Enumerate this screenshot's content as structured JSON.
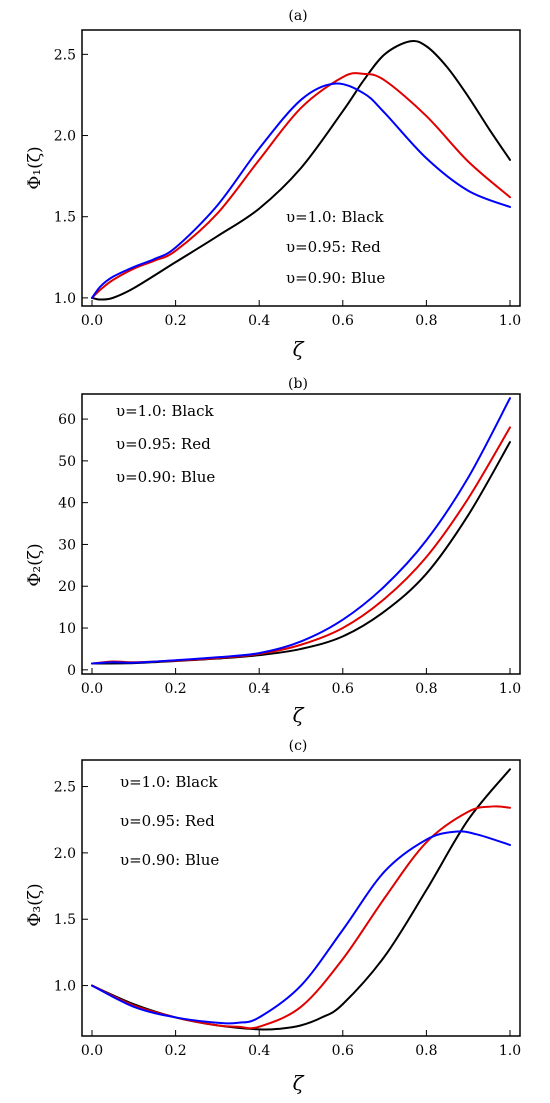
{
  "chart_data": [
    {
      "type": "line",
      "title": "(a)",
      "xlabel": "ζ",
      "ylabel": "Φ₁(ζ)",
      "xlim": [
        0,
        1
      ],
      "ylim": [
        0.95,
        2.65
      ],
      "xticks": [
        0.0,
        0.2,
        0.4,
        0.6,
        0.8,
        1.0
      ],
      "xtick_labels": [
        "0.0",
        "0.2",
        "0.4",
        "0.6",
        "0.8",
        "1.0"
      ],
      "yticks": [
        1.0,
        1.5,
        2.0,
        2.5
      ],
      "ytick_labels": [
        "1.0",
        "1.5",
        "2.0",
        "2.5"
      ],
      "annotations": [
        "υ=1.0: Black",
        "υ=0.95: Red",
        "υ=0.90: Blue"
      ],
      "annotation_position": "lower-right",
      "grid": false,
      "series": [
        {
          "color": "#000000",
          "x": [
            0,
            0.02,
            0.05,
            0.1,
            0.2,
            0.3,
            0.4,
            0.5,
            0.6,
            0.65,
            0.7,
            0.76,
            0.8,
            0.85,
            0.9,
            0.95,
            1.0
          ],
          "y": [
            1.0,
            0.99,
            1.0,
            1.06,
            1.22,
            1.38,
            1.55,
            1.8,
            2.15,
            2.34,
            2.5,
            2.58,
            2.55,
            2.42,
            2.24,
            2.04,
            1.85
          ]
        },
        {
          "color": "#e00000",
          "x": [
            0,
            0.02,
            0.05,
            0.1,
            0.15,
            0.2,
            0.3,
            0.4,
            0.5,
            0.6,
            0.65,
            0.7,
            0.8,
            0.9,
            1.0
          ],
          "y": [
            1.0,
            1.05,
            1.11,
            1.18,
            1.23,
            1.29,
            1.52,
            1.85,
            2.17,
            2.36,
            2.38,
            2.34,
            2.12,
            1.84,
            1.62
          ]
        },
        {
          "color": "#0000ff",
          "x": [
            0,
            0.02,
            0.05,
            0.1,
            0.15,
            0.2,
            0.3,
            0.4,
            0.5,
            0.58,
            0.65,
            0.7,
            0.8,
            0.9,
            1.0
          ],
          "y": [
            1.0,
            1.07,
            1.13,
            1.19,
            1.24,
            1.31,
            1.57,
            1.92,
            2.22,
            2.32,
            2.26,
            2.14,
            1.86,
            1.66,
            1.56
          ]
        }
      ]
    },
    {
      "type": "line",
      "title": "(b)",
      "xlabel": "ζ",
      "ylabel": "Φ₂(ζ)",
      "xlim": [
        0,
        1
      ],
      "ylim": [
        -1,
        66
      ],
      "xticks": [
        0.0,
        0.2,
        0.4,
        0.6,
        0.8,
        1.0
      ],
      "xtick_labels": [
        "0.0",
        "0.2",
        "0.4",
        "0.6",
        "0.8",
        "1.0"
      ],
      "yticks": [
        0,
        10,
        20,
        30,
        40,
        50,
        60
      ],
      "ytick_labels": [
        "0",
        "10",
        "20",
        "30",
        "40",
        "50",
        "60"
      ],
      "annotations": [
        "υ=1.0: Black",
        "υ=0.95: Red",
        "υ=0.90: Blue"
      ],
      "annotation_position": "top-left",
      "grid": false,
      "series": [
        {
          "color": "#000000",
          "x": [
            0,
            0.1,
            0.2,
            0.3,
            0.4,
            0.5,
            0.6,
            0.7,
            0.8,
            0.9,
            1.0
          ],
          "y": [
            1.5,
            1.6,
            2.1,
            2.7,
            3.5,
            5.0,
            8.0,
            14.0,
            23.0,
            37.0,
            54.5
          ]
        },
        {
          "color": "#e00000",
          "x": [
            0,
            0.05,
            0.1,
            0.2,
            0.3,
            0.4,
            0.5,
            0.6,
            0.7,
            0.8,
            0.9,
            1.0
          ],
          "y": [
            1.5,
            2.0,
            1.8,
            2.2,
            2.8,
            3.8,
            6.0,
            10.0,
            17.0,
            27.0,
            41.0,
            58.0
          ]
        },
        {
          "color": "#0000ff",
          "x": [
            0,
            0.05,
            0.1,
            0.2,
            0.3,
            0.4,
            0.5,
            0.6,
            0.7,
            0.8,
            0.9,
            1.0
          ],
          "y": [
            1.5,
            1.8,
            1.7,
            2.3,
            3.0,
            4.0,
            6.8,
            12.0,
            20.0,
            31.0,
            46.0,
            65.0
          ]
        }
      ]
    },
    {
      "type": "line",
      "title": "(c)",
      "xlabel": "ζ",
      "ylabel": "Φ₃(ζ)",
      "xlim": [
        0,
        1
      ],
      "ylim": [
        0.62,
        2.7
      ],
      "xticks": [
        0.0,
        0.2,
        0.4,
        0.6,
        0.8,
        1.0
      ],
      "xtick_labels": [
        "0.0",
        "0.2",
        "0.4",
        "0.6",
        "0.8",
        "1.0"
      ],
      "yticks": [
        1.0,
        1.5,
        2.0,
        2.5
      ],
      "ytick_labels": [
        "1.0",
        "1.5",
        "2.0",
        "2.5"
      ],
      "annotations": [
        "υ=1.0:  Black",
        "υ=0.95: Red",
        "υ=0.90: Blue"
      ],
      "annotation_position": "top-left",
      "grid": false,
      "series": [
        {
          "color": "#000000",
          "x": [
            0,
            0.1,
            0.2,
            0.3,
            0.4,
            0.45,
            0.5,
            0.55,
            0.6,
            0.7,
            0.8,
            0.9,
            1.0
          ],
          "y": [
            1.0,
            0.86,
            0.76,
            0.7,
            0.67,
            0.675,
            0.7,
            0.76,
            0.86,
            1.22,
            1.72,
            2.25,
            2.63
          ]
        },
        {
          "color": "#e00000",
          "x": [
            0,
            0.1,
            0.2,
            0.3,
            0.35,
            0.4,
            0.5,
            0.6,
            0.7,
            0.8,
            0.9,
            0.96,
            1.0
          ],
          "y": [
            1.0,
            0.85,
            0.76,
            0.7,
            0.69,
            0.69,
            0.84,
            1.2,
            1.66,
            2.08,
            2.31,
            2.35,
            2.34
          ]
        },
        {
          "color": "#0000ff",
          "x": [
            0,
            0.1,
            0.2,
            0.3,
            0.35,
            0.4,
            0.5,
            0.6,
            0.7,
            0.8,
            0.87,
            0.92,
            1.0
          ],
          "y": [
            1.0,
            0.84,
            0.76,
            0.72,
            0.72,
            0.76,
            1.0,
            1.42,
            1.86,
            2.1,
            2.16,
            2.14,
            2.06
          ]
        }
      ]
    }
  ]
}
